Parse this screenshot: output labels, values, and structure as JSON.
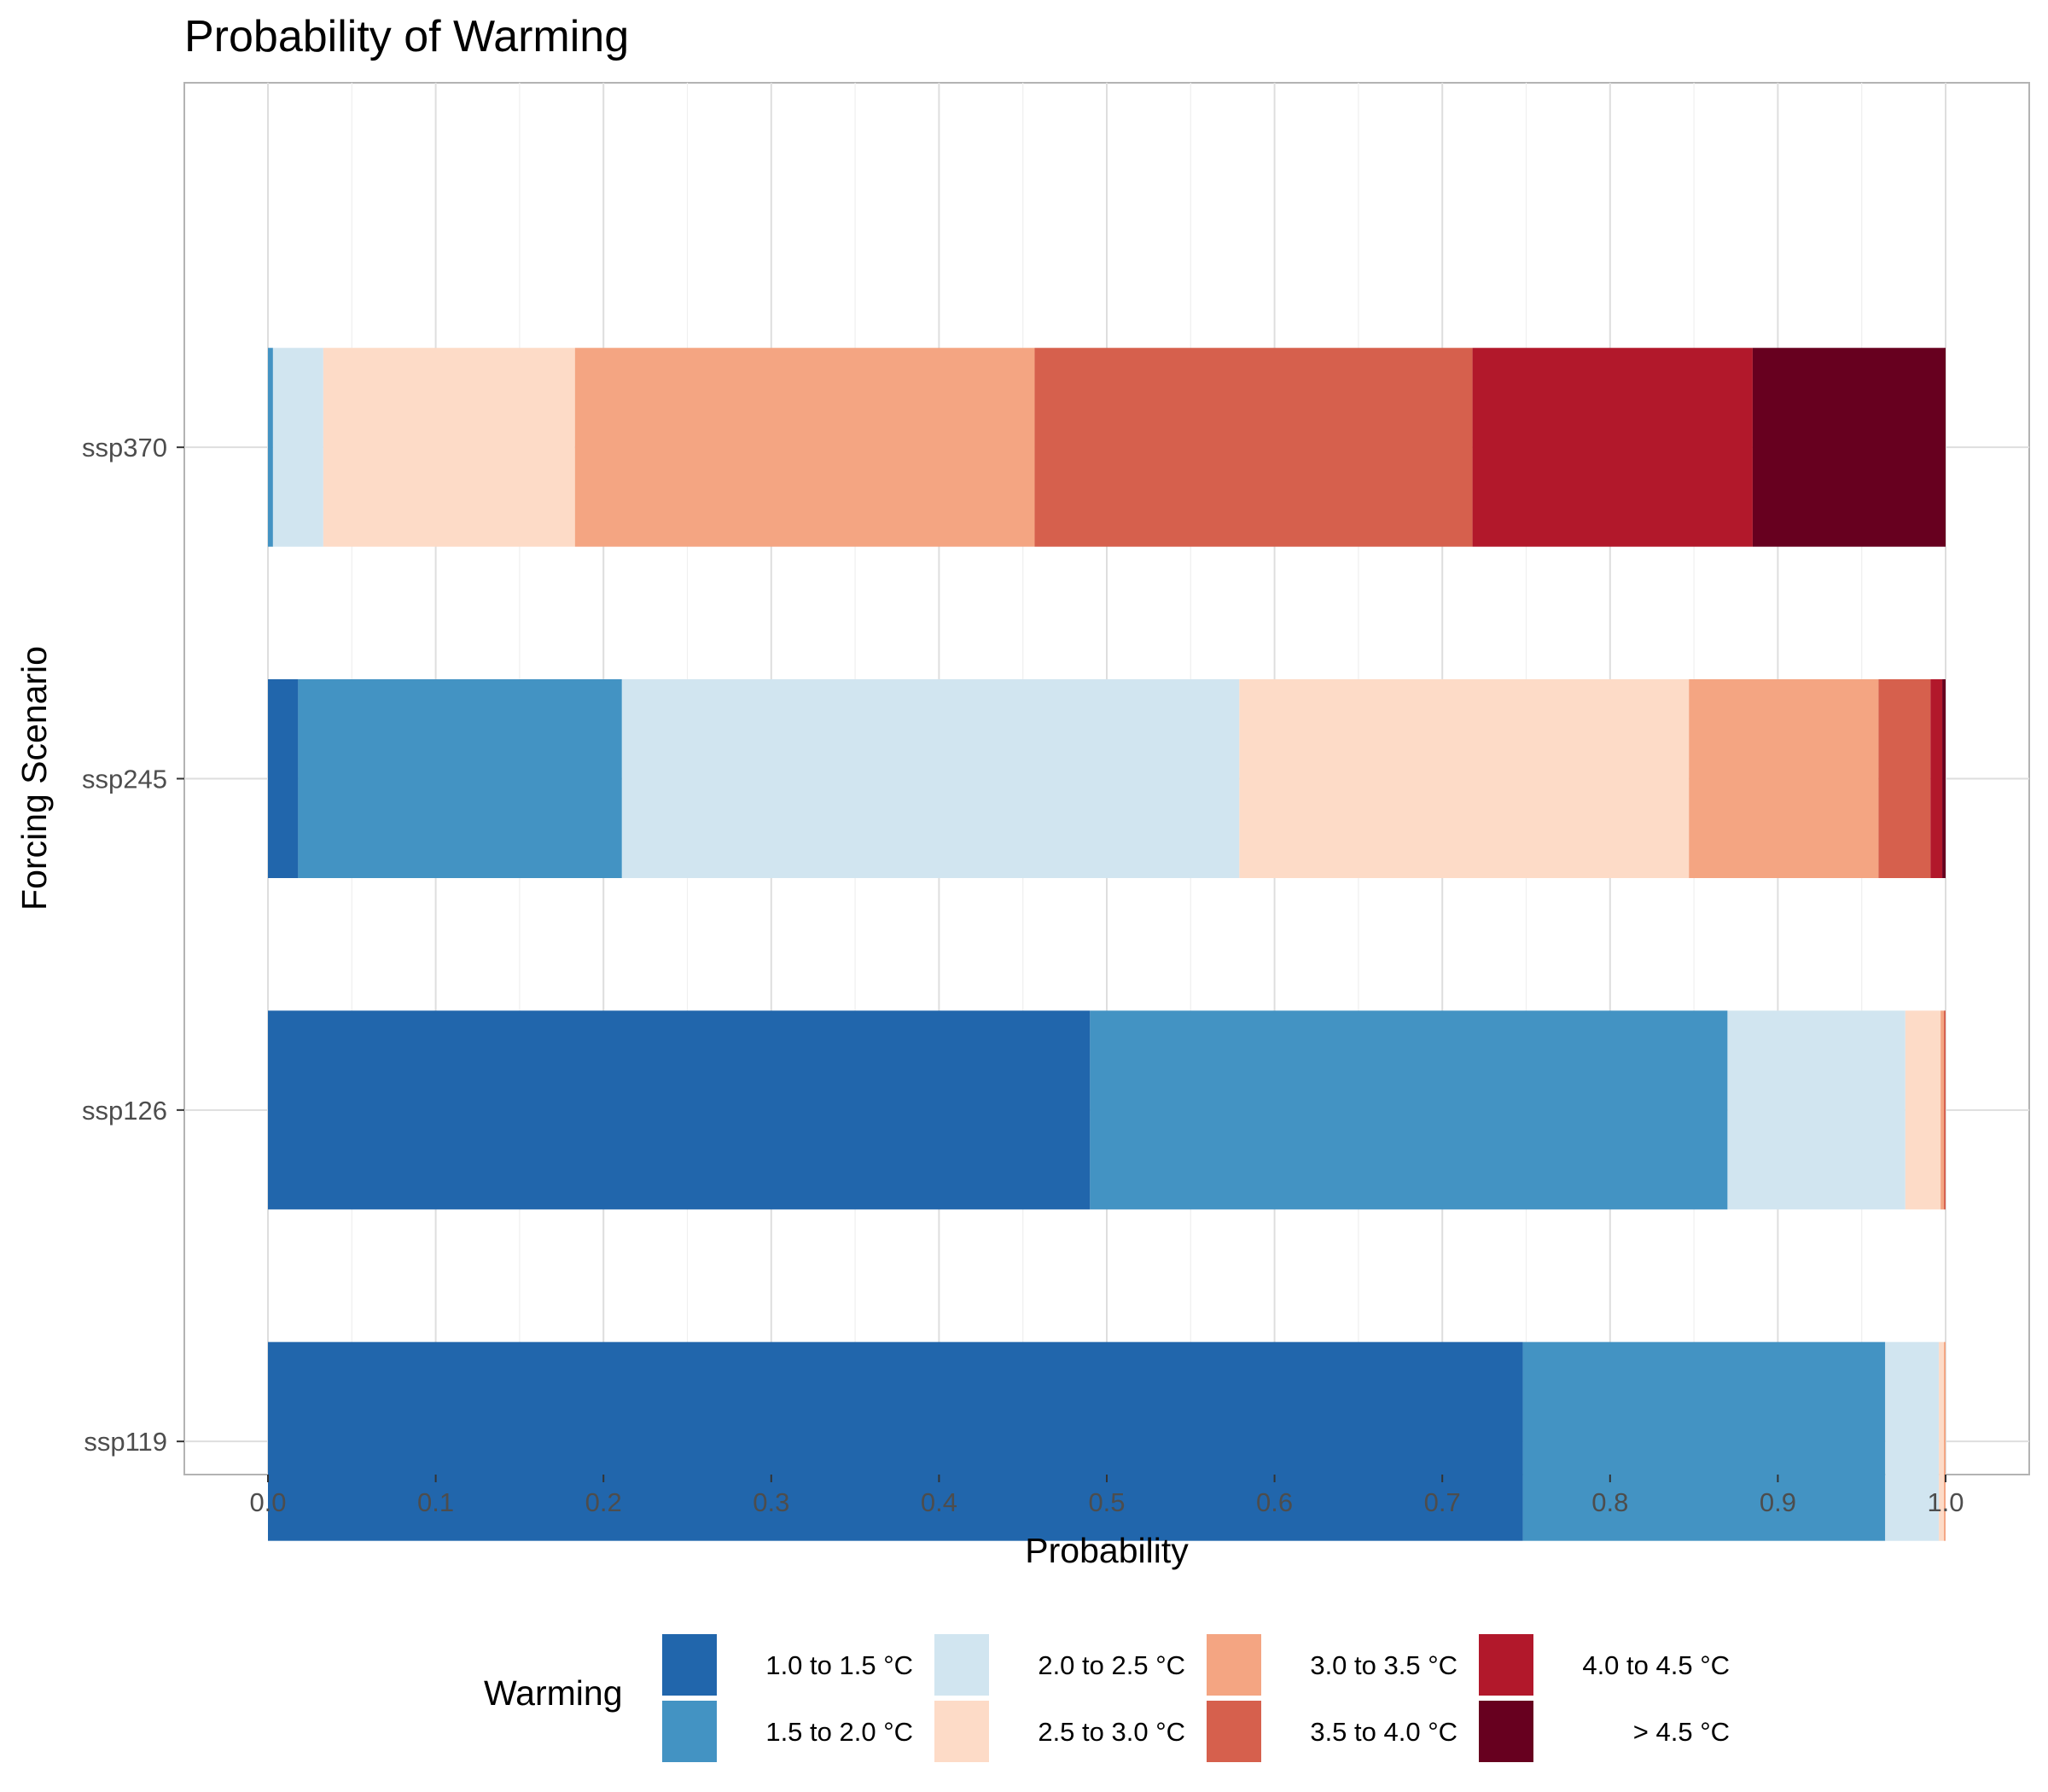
{
  "chart_data": {
    "type": "bar",
    "orientation": "horizontal",
    "stacked": true,
    "title": "Probability of Warming",
    "xlabel": "Probability",
    "ylabel": "Forcing Scenario",
    "xlim": [
      0,
      1
    ],
    "x_ticks": [
      "0.0",
      "0.1",
      "0.2",
      "0.3",
      "0.4",
      "0.5",
      "0.6",
      "0.7",
      "0.8",
      "0.9",
      "1.0"
    ],
    "categories": [
      "ssp370",
      "ssp245",
      "ssp126",
      "ssp119"
    ],
    "grid": true,
    "legend": {
      "title": "Warming",
      "position": "bottom"
    },
    "series": [
      {
        "name": "1.0 to 1.5 °C",
        "color": "#2166ac",
        "values": [
          0.0,
          0.018,
          0.49,
          0.748
        ]
      },
      {
        "name": "1.5 to 2.0 °C",
        "color": "#4393c3",
        "values": [
          0.003,
          0.193,
          0.38,
          0.216
        ]
      },
      {
        "name": "2.0 to 2.5 °C",
        "color": "#d1e5f0",
        "values": [
          0.03,
          0.368,
          0.106,
          0.032
        ]
      },
      {
        "name": "2.5 to 3.0 °C",
        "color": "#fddbc7",
        "values": [
          0.15,
          0.268,
          0.021,
          0.003
        ]
      },
      {
        "name": "3.0 to 3.5 °C",
        "color": "#f4a582",
        "values": [
          0.274,
          0.113,
          0.002,
          0.001
        ]
      },
      {
        "name": "3.5 to 4.0 °C",
        "color": "#d6604d",
        "values": [
          0.261,
          0.031,
          0.001,
          0.0
        ]
      },
      {
        "name": "4.0 to 4.5 °C",
        "color": "#b2182b",
        "values": [
          0.167,
          0.007,
          0.0,
          0.0
        ]
      },
      {
        "name": "> 4.5 °C",
        "color": "#67001f",
        "values": [
          0.115,
          0.002,
          0.0,
          0.0
        ]
      }
    ]
  }
}
